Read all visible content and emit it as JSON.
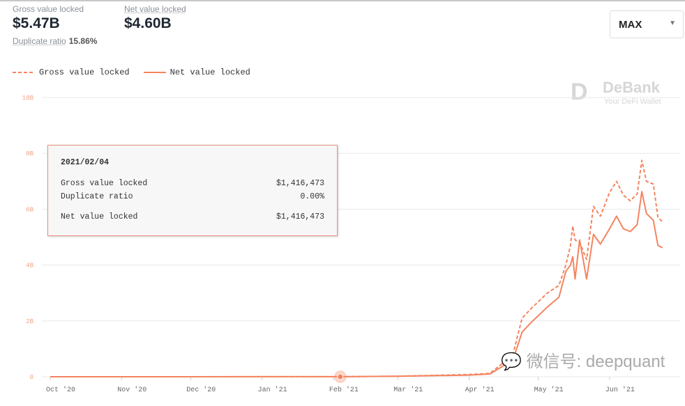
{
  "header": {
    "gross_label": "Gross value locked",
    "gross_value": "$5.47B",
    "net_label": "Net value locked",
    "net_value": "$4.60B",
    "dup_label": "Duplicate ratio",
    "dup_value": "15.86%"
  },
  "range_select": {
    "value": "MAX",
    "icon": "chevron-down-icon"
  },
  "tooltip": {
    "date": "2021/02/04",
    "rows": [
      {
        "label": "Gross value locked",
        "value": "$1,416,473"
      },
      {
        "label": "Duplicate ratio",
        "value": "0.00%"
      },
      {
        "label": "Net value locked",
        "value": "$1,416,473"
      }
    ]
  },
  "logo": {
    "mark": "D",
    "name": "DeBank",
    "tagline": "Your DeFi Wallet"
  },
  "watermark": "微信号: deepquant",
  "colors": {
    "line": "#f4845f",
    "axis_y": "#f4a08a",
    "axis_x": "#666666",
    "grid": "#e8e8e8"
  },
  "chart_data": {
    "type": "line",
    "title": "",
    "xlabel": "",
    "ylabel": "",
    "ylim": [
      0,
      10
    ],
    "y_ticks": [
      "0",
      "2B",
      "4B",
      "6B",
      "8B",
      "10B"
    ],
    "y_tick_values": [
      0,
      2,
      4,
      6,
      8,
      10
    ],
    "x_ticks": [
      "Oct '20",
      "Nov '20",
      "Dec '20",
      "Jan '21",
      "Feb '21",
      "Mar '21",
      "Apr '21",
      "May '21",
      "Jun '21"
    ],
    "x_tick_dates": [
      "2020-10-01",
      "2020-11-01",
      "2020-12-01",
      "2021-01-01",
      "2021-02-01",
      "2021-03-01",
      "2021-04-01",
      "2021-05-01",
      "2021-06-01"
    ],
    "grid": true,
    "legend_position": "top-left",
    "highlight_date": "2021-02-04",
    "x": [
      "2020-10-01",
      "2021-02-04",
      "2021-03-01",
      "2021-04-01",
      "2021-04-10",
      "2021-04-15",
      "2021-04-20",
      "2021-04-24",
      "2021-04-28",
      "2021-05-05",
      "2021-05-10",
      "2021-05-13",
      "2021-05-15",
      "2021-05-16",
      "2021-05-17",
      "2021-05-19",
      "2021-05-22",
      "2021-05-25",
      "2021-05-28",
      "2021-06-01",
      "2021-06-04",
      "2021-06-07",
      "2021-06-10",
      "2021-06-13",
      "2021-06-15",
      "2021-06-17",
      "2021-06-20",
      "2021-06-22",
      "2021-06-24"
    ],
    "series": [
      {
        "name": "Gross value locked",
        "style": "dashed",
        "values": [
          0,
          0.0014,
          0.02,
          0.08,
          0.12,
          0.45,
          0.8,
          2.1,
          2.45,
          3.0,
          3.27,
          4.0,
          4.7,
          5.4,
          4.9,
          4.8,
          4.2,
          6.1,
          5.75,
          6.6,
          7.0,
          6.5,
          6.3,
          6.55,
          7.75,
          7.0,
          6.9,
          5.7,
          5.55
        ]
      },
      {
        "name": "Net value locked",
        "style": "solid",
        "values": [
          0,
          0.0014,
          0.02,
          0.06,
          0.1,
          0.35,
          0.6,
          1.6,
          1.95,
          2.5,
          2.85,
          3.77,
          4.0,
          4.3,
          3.5,
          4.9,
          3.5,
          5.1,
          4.75,
          5.3,
          5.75,
          5.3,
          5.2,
          5.45,
          6.63,
          5.85,
          5.6,
          4.7,
          4.62
        ]
      }
    ]
  }
}
